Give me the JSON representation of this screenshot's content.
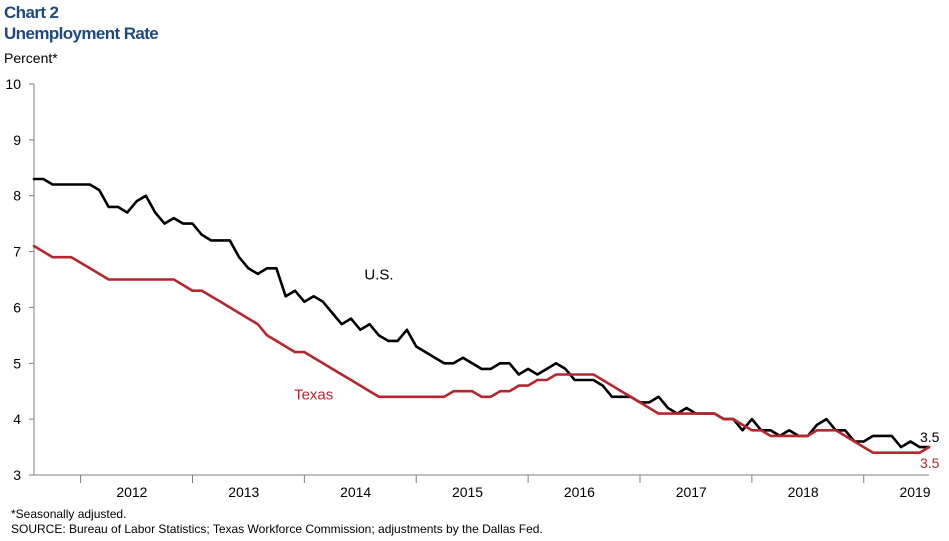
{
  "header": {
    "chart_number": "Chart 2",
    "title": "Unemployment Rate"
  },
  "notes": {
    "footnote": "*Seasonally adjusted.",
    "source": "SOURCE:  Bureau of Labor Statistics; Texas Workforce Commission; adjustments by the Dallas Fed."
  },
  "chart_data": {
    "type": "line",
    "title": "Unemployment Rate",
    "ylabel": "Percent*",
    "xlabel": "",
    "ylim": [
      3,
      10
    ],
    "yticks": [
      "3",
      "4",
      "5",
      "6",
      "7",
      "8",
      "9",
      "10"
    ],
    "xlim": [
      "2011-08",
      "2019-08"
    ],
    "xtick_labels": [
      "2012",
      "2013",
      "2014",
      "2015",
      "2016",
      "2017",
      "2018",
      "2019"
    ],
    "grid": false,
    "legend": "none (series labelled directly on the plot)",
    "x": [
      "2011-08",
      "2011-09",
      "2011-10",
      "2011-11",
      "2011-12",
      "2012-01",
      "2012-02",
      "2012-03",
      "2012-04",
      "2012-05",
      "2012-06",
      "2012-07",
      "2012-08",
      "2012-09",
      "2012-10",
      "2012-11",
      "2012-12",
      "2013-01",
      "2013-02",
      "2013-03",
      "2013-04",
      "2013-05",
      "2013-06",
      "2013-07",
      "2013-08",
      "2013-09",
      "2013-10",
      "2013-11",
      "2013-12",
      "2014-01",
      "2014-02",
      "2014-03",
      "2014-04",
      "2014-05",
      "2014-06",
      "2014-07",
      "2014-08",
      "2014-09",
      "2014-10",
      "2014-11",
      "2014-12",
      "2015-01",
      "2015-02",
      "2015-03",
      "2015-04",
      "2015-05",
      "2015-06",
      "2015-07",
      "2015-08",
      "2015-09",
      "2015-10",
      "2015-11",
      "2015-12",
      "2016-01",
      "2016-02",
      "2016-03",
      "2016-04",
      "2016-05",
      "2016-06",
      "2016-07",
      "2016-08",
      "2016-09",
      "2016-10",
      "2016-11",
      "2016-12",
      "2017-01",
      "2017-02",
      "2017-03",
      "2017-04",
      "2017-05",
      "2017-06",
      "2017-07",
      "2017-08",
      "2017-09",
      "2017-10",
      "2017-11",
      "2017-12",
      "2018-01",
      "2018-02",
      "2018-03",
      "2018-04",
      "2018-05",
      "2018-06",
      "2018-07",
      "2018-08",
      "2018-09",
      "2018-10",
      "2018-11",
      "2018-12",
      "2019-01",
      "2019-02",
      "2019-03",
      "2019-04",
      "2019-05",
      "2019-06",
      "2019-07",
      "2019-08"
    ],
    "series": [
      {
        "name": "U.S.",
        "color": "#000000",
        "end_label": "3.5",
        "values": [
          8.3,
          8.3,
          8.2,
          8.2,
          8.2,
          8.2,
          8.2,
          8.1,
          7.8,
          7.8,
          7.7,
          7.9,
          8.0,
          7.7,
          7.5,
          7.6,
          7.5,
          7.5,
          7.3,
          7.2,
          7.2,
          7.2,
          6.9,
          6.7,
          6.6,
          6.7,
          6.7,
          6.2,
          6.3,
          6.1,
          6.2,
          6.1,
          5.9,
          5.7,
          5.8,
          5.6,
          5.7,
          5.5,
          5.4,
          5.4,
          5.6,
          5.3,
          5.2,
          5.1,
          5.0,
          5.0,
          5.1,
          5.0,
          4.9,
          4.9,
          5.0,
          5.0,
          4.8,
          4.9,
          4.8,
          4.9,
          5.0,
          4.9,
          4.7,
          4.7,
          4.7,
          4.6,
          4.4,
          4.4,
          4.4,
          4.3,
          4.3,
          4.4,
          4.2,
          4.1,
          4.2,
          4.1,
          4.1,
          4.1,
          4.0,
          4.0,
          3.8,
          4.0,
          3.8,
          3.8,
          3.7,
          3.8,
          3.7,
          3.7,
          3.9,
          4.0,
          3.8,
          3.8,
          3.6,
          3.6,
          3.7,
          3.7,
          3.7,
          3.5,
          3.6,
          3.5,
          3.5
        ]
      },
      {
        "name": "Texas",
        "color": "#b3272d",
        "end_label": "3.5",
        "values": [
          7.1,
          7.0,
          6.9,
          6.9,
          6.9,
          6.8,
          6.7,
          6.6,
          6.5,
          6.5,
          6.5,
          6.5,
          6.5,
          6.5,
          6.5,
          6.5,
          6.4,
          6.3,
          6.3,
          6.2,
          6.1,
          6.0,
          5.9,
          5.8,
          5.7,
          5.5,
          5.4,
          5.3,
          5.2,
          5.2,
          5.1,
          5.0,
          4.9,
          4.8,
          4.7,
          4.6,
          4.5,
          4.4,
          4.4,
          4.4,
          4.4,
          4.4,
          4.4,
          4.4,
          4.4,
          4.5,
          4.5,
          4.5,
          4.4,
          4.4,
          4.5,
          4.5,
          4.6,
          4.6,
          4.7,
          4.7,
          4.8,
          4.8,
          4.8,
          4.8,
          4.8,
          4.7,
          4.6,
          4.5,
          4.4,
          4.3,
          4.2,
          4.1,
          4.1,
          4.1,
          4.1,
          4.1,
          4.1,
          4.1,
          4.0,
          4.0,
          3.9,
          3.8,
          3.8,
          3.7,
          3.7,
          3.7,
          3.7,
          3.7,
          3.8,
          3.8,
          3.8,
          3.7,
          3.6,
          3.5,
          3.4,
          3.4,
          3.4,
          3.4,
          3.4,
          3.4,
          3.5
        ]
      }
    ],
    "annotations": [
      {
        "text": "U.S.",
        "series": "U.S.",
        "x": "2014-09",
        "y": 6.5
      },
      {
        "text": "Texas",
        "series": "Texas",
        "x": "2014-02",
        "y": 4.35
      }
    ]
  }
}
